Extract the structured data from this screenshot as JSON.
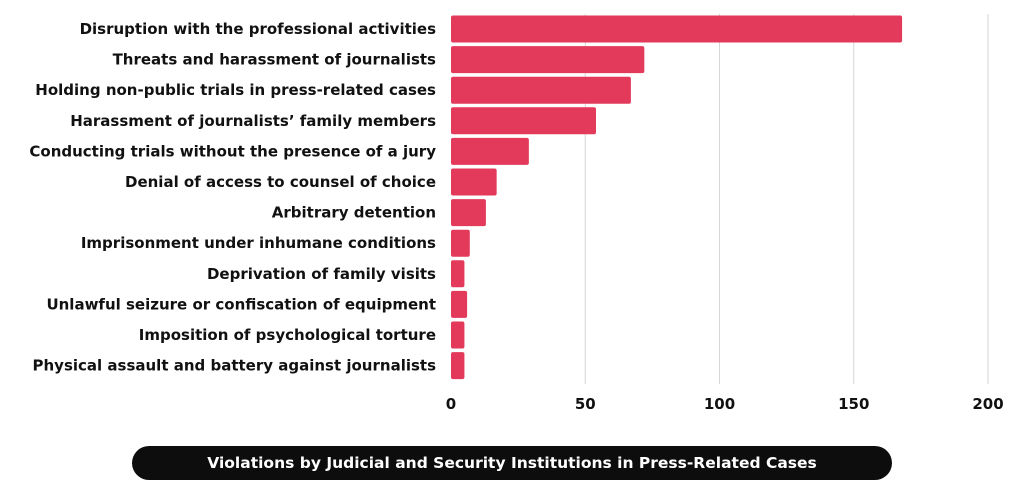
{
  "chart_data": {
    "type": "bar",
    "orientation": "horizontal",
    "title": "Violations by Judicial and Security Institutions in Press-Related Cases",
    "xlabel": "",
    "ylabel": "",
    "xlim": [
      0,
      200
    ],
    "xticks": [
      0,
      50,
      100,
      150,
      200
    ],
    "grid": true,
    "bar_color": "#e3395a",
    "categories": [
      "Disruption with the professional activities",
      "Threats and harassment of journalists",
      "Holding non-public trials in press-related cases",
      "Harassment of journalists’ family members",
      "Conducting trials without the presence of a jury",
      "Denial of access to counsel of choice",
      "Arbitrary detention",
      "Imprisonment under inhumane conditions",
      "Deprivation of family visits",
      "Unlawful seizure or confiscation of equipment",
      "Imposition of psychological torture",
      "Physical assault and battery against journalists"
    ],
    "values": [
      168,
      72,
      67,
      54,
      29,
      17,
      13,
      7,
      5,
      6,
      5,
      5
    ]
  }
}
